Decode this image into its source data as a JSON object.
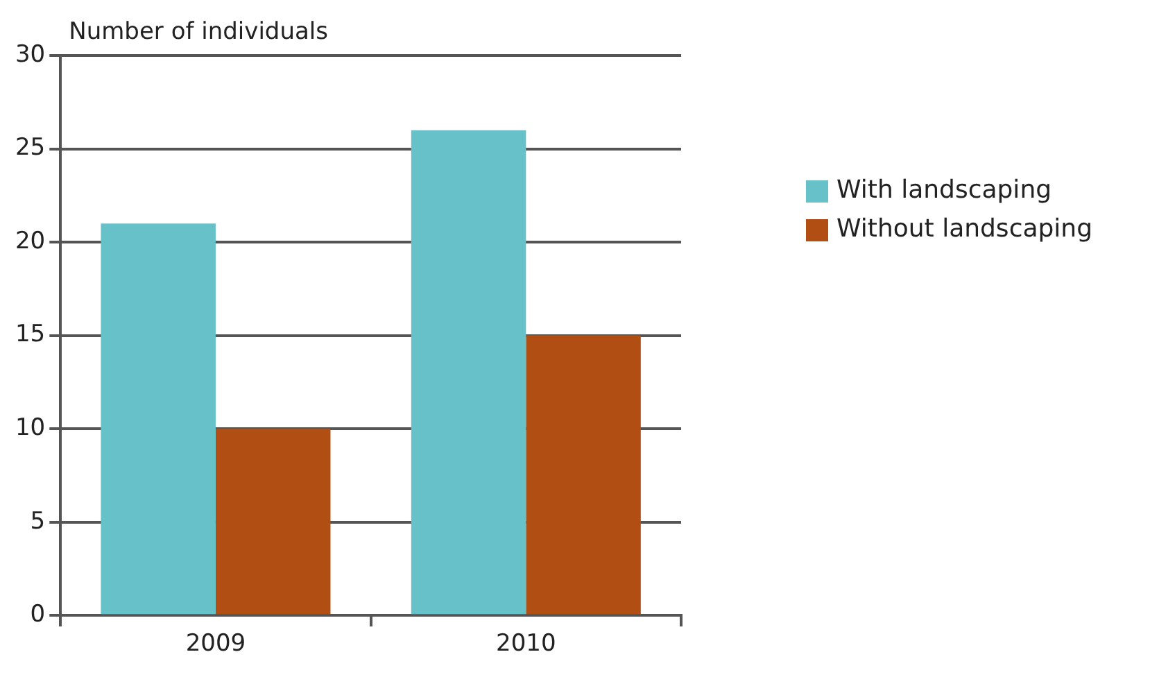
{
  "chart_data": {
    "type": "bar",
    "ylabel": "Number of individuals",
    "categories": [
      "2009",
      "2010"
    ],
    "series": [
      {
        "name": "With landscaping",
        "color": "#66c2c8",
        "values": [
          21,
          26
        ]
      },
      {
        "name": "Without landscaping",
        "color": "#b04e14",
        "values": [
          10,
          15
        ]
      }
    ],
    "ylim": [
      0,
      30
    ],
    "yticks": [
      0,
      5,
      10,
      15,
      20,
      25,
      30
    ],
    "grid": "y",
    "legend": "right"
  }
}
